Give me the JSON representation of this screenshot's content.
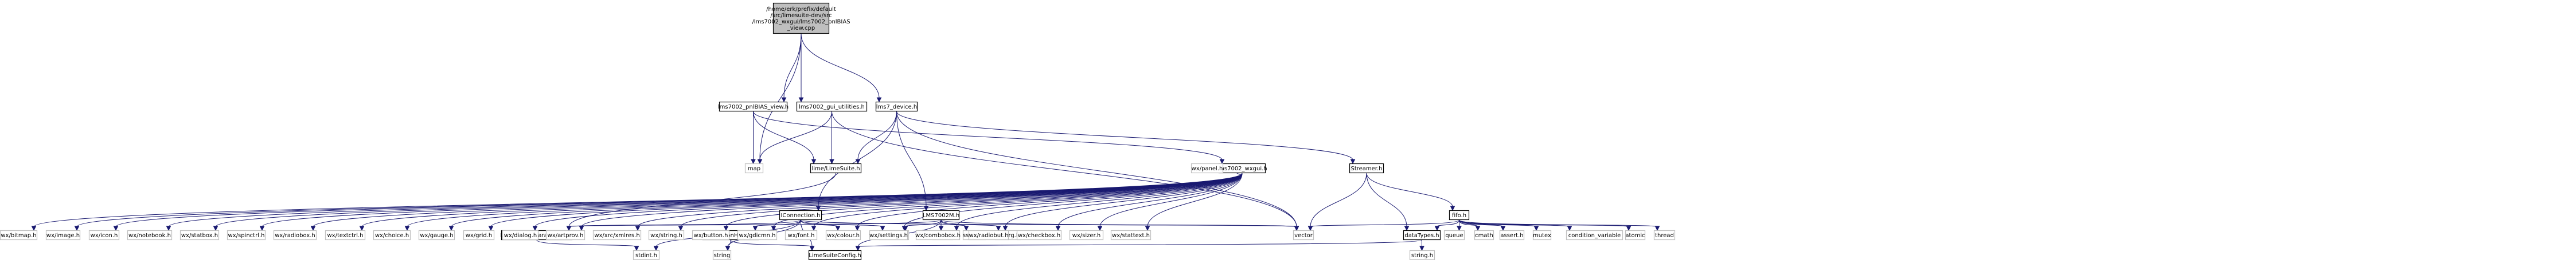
{
  "title": "",
  "nodes": [
    {
      "id": "root",
      "kind": "root",
      "lines": [
        "/home/erk/prefix/default",
        "/src/limesuite-dev/src",
        "/lms7002_wxgui/lms7002_pnlBIAS",
        "_view.cpp"
      ]
    },
    {
      "id": "pnlBIAS_view_h",
      "kind": "linked",
      "lines": [
        "lms7002_pnlBIAS_view.h"
      ]
    },
    {
      "id": "gui_utilities_h",
      "kind": "linked",
      "lines": [
        "lms7002_gui_utilities.h"
      ]
    },
    {
      "id": "lms7_device_h",
      "kind": "linked",
      "lines": [
        "lms7_device.h"
      ]
    },
    {
      "id": "map",
      "kind": "plain",
      "lines": [
        "map"
      ]
    },
    {
      "id": "lms7002_wxgui_h",
      "kind": "linked",
      "lines": [
        "lms7002_wxgui.h"
      ]
    },
    {
      "id": "lime_LimeSuite_h",
      "kind": "linked",
      "lines": [
        "lime/LimeSuite.h"
      ]
    },
    {
      "id": "Streamer_h",
      "kind": "linked",
      "lines": [
        "Streamer.h"
      ]
    },
    {
      "id": "fifo_h",
      "kind": "linked",
      "lines": [
        "fifo.h"
      ]
    },
    {
      "id": "IConnection_h",
      "kind": "linked",
      "lines": [
        "IConnection.h"
      ]
    },
    {
      "id": "LMS7002M_h",
      "kind": "linked",
      "lines": [
        "LMS7002M.h"
      ]
    },
    {
      "id": "LMS7002M_parameters_h",
      "kind": "linked",
      "lines": [
        "LMS7002M_parameters.h"
      ]
    },
    {
      "id": "ConnectionHandle_h",
      "kind": "linked",
      "lines": [
        "ConnectionHandle.h"
      ]
    },
    {
      "id": "LimeSuiteConfig_h",
      "kind": "linked",
      "lines": [
        "LimeSuiteConfig.h"
      ]
    },
    {
      "id": "dataTypes_h",
      "kind": "linked",
      "lines": [
        "dataTypes.h"
      ]
    },
    {
      "id": "vector",
      "kind": "plain",
      "lines": [
        "vector"
      ]
    },
    {
      "id": "stdint_h",
      "kind": "plain",
      "lines": [
        "stdint.h"
      ]
    },
    {
      "id": "string",
      "kind": "plain",
      "lines": [
        "string"
      ]
    },
    {
      "id": "cstring",
      "kind": "plain",
      "lines": [
        "cstring"
      ]
    },
    {
      "id": "functional",
      "kind": "plain",
      "lines": [
        "functional"
      ]
    },
    {
      "id": "cstdint",
      "kind": "plain",
      "lines": [
        "cstdint"
      ]
    },
    {
      "id": "sstream",
      "kind": "plain",
      "lines": [
        "sstream"
      ]
    },
    {
      "id": "stdarg_h",
      "kind": "plain",
      "lines": [
        "stdarg.h"
      ]
    },
    {
      "id": "queue",
      "kind": "plain",
      "lines": [
        "queue"
      ]
    },
    {
      "id": "cmath",
      "kind": "plain",
      "lines": [
        "cmath"
      ]
    },
    {
      "id": "assert_h",
      "kind": "plain",
      "lines": [
        "assert.h"
      ]
    },
    {
      "id": "mutex",
      "kind": "plain",
      "lines": [
        "mutex"
      ]
    },
    {
      "id": "condition_variable",
      "kind": "plain",
      "lines": [
        "condition_variable"
      ]
    },
    {
      "id": "atomic",
      "kind": "plain",
      "lines": [
        "atomic"
      ]
    },
    {
      "id": "thread",
      "kind": "plain",
      "lines": [
        "thread"
      ]
    },
    {
      "id": "string_h",
      "kind": "plain",
      "lines": [
        "string.h"
      ]
    },
    {
      "id": "wx_bitmap_h",
      "kind": "plain",
      "lines": [
        "wx/bitmap.h"
      ]
    },
    {
      "id": "wx_image_h",
      "kind": "plain",
      "lines": [
        "wx/image.h"
      ]
    },
    {
      "id": "wx_icon_h",
      "kind": "plain",
      "lines": [
        "wx/icon.h"
      ]
    },
    {
      "id": "wx_notebook_h",
      "kind": "plain",
      "lines": [
        "wx/notebook.h"
      ]
    },
    {
      "id": "wx_statbox_h",
      "kind": "plain",
      "lines": [
        "wx/statbox.h"
      ]
    },
    {
      "id": "wx_spinctrl_h",
      "kind": "plain",
      "lines": [
        "wx/spinctrl.h"
      ]
    },
    {
      "id": "wx_radiobox_h",
      "kind": "plain",
      "lines": [
        "wx/radiobox.h"
      ]
    },
    {
      "id": "wx_textctrl_h",
      "kind": "plain",
      "lines": [
        "wx/textctrl.h"
      ]
    },
    {
      "id": "wx_choice_h",
      "kind": "plain",
      "lines": [
        "wx/choice.h"
      ]
    },
    {
      "id": "wx_gauge_h",
      "kind": "plain",
      "lines": [
        "wx/gauge.h"
      ]
    },
    {
      "id": "wx_grid_h",
      "kind": "plain",
      "lines": [
        "wx/grid.h"
      ]
    },
    {
      "id": "wx_dialog_h",
      "kind": "plain",
      "lines": [
        "wx/dialog.h"
      ]
    },
    {
      "id": "wx_artprov_h",
      "kind": "plain",
      "lines": [
        "wx/artprov.h"
      ]
    },
    {
      "id": "wx_xrc_xmlres_h",
      "kind": "plain",
      "lines": [
        "wx/xrc/xmlres.h"
      ]
    },
    {
      "id": "wx_string_h",
      "kind": "plain",
      "lines": [
        "wx/string.h"
      ]
    },
    {
      "id": "wx_button_h",
      "kind": "plain",
      "lines": [
        "wx/button.h"
      ]
    },
    {
      "id": "wx_gdicmn_h",
      "kind": "plain",
      "lines": [
        "wx/gdicmn.h"
      ]
    },
    {
      "id": "wx_font_h",
      "kind": "plain",
      "lines": [
        "wx/font.h"
      ]
    },
    {
      "id": "wx_colour_h",
      "kind": "plain",
      "lines": [
        "wx/colour.h"
      ]
    },
    {
      "id": "wx_settings_h",
      "kind": "plain",
      "lines": [
        "wx/settings.h"
      ]
    },
    {
      "id": "wx_combobox_h",
      "kind": "plain",
      "lines": [
        "wx/combobox.h"
      ]
    },
    {
      "id": "wx_radiobut_h",
      "kind": "plain",
      "lines": [
        "wx/radiobut.h"
      ]
    },
    {
      "id": "wx_checkbox_h",
      "kind": "plain",
      "lines": [
        "wx/checkbox.h"
      ]
    },
    {
      "id": "wx_sizer_h",
      "kind": "plain",
      "lines": [
        "wx/sizer.h"
      ]
    },
    {
      "id": "wx_stattext_h",
      "kind": "plain",
      "lines": [
        "wx/stattext.h"
      ]
    },
    {
      "id": "wx_panel_h",
      "kind": "plain",
      "lines": [
        "wx/panel.h"
      ]
    }
  ],
  "edges": [
    [
      "root",
      "pnlBIAS_view_h"
    ],
    [
      "root",
      "gui_utilities_h"
    ],
    [
      "root",
      "lms7_device_h"
    ],
    [
      "root",
      "map"
    ],
    [
      "pnlBIAS_view_h",
      "lms7002_wxgui_h"
    ],
    [
      "pnlBIAS_view_h",
      "map"
    ],
    [
      "pnlBIAS_view_h",
      "lime_LimeSuite_h"
    ],
    [
      "gui_utilities_h",
      "map"
    ],
    [
      "gui_utilities_h",
      "lime_LimeSuite_h"
    ],
    [
      "gui_utilities_h",
      "vector"
    ],
    [
      "lms7_device_h",
      "lime_LimeSuite_h"
    ],
    [
      "lms7_device_h",
      "IConnection_h"
    ],
    [
      "lms7_device_h",
      "LMS7002M_h"
    ],
    [
      "lms7_device_h",
      "Streamer_h"
    ],
    [
      "lms7_device_h",
      "vector"
    ],
    [
      "Streamer_h",
      "fifo_h"
    ],
    [
      "Streamer_h",
      "dataTypes_h"
    ],
    [
      "Streamer_h",
      "vector"
    ],
    [
      "fifo_h",
      "dataTypes_h"
    ],
    [
      "fifo_h",
      "vector"
    ],
    [
      "fifo_h",
      "queue"
    ],
    [
      "fifo_h",
      "cmath"
    ],
    [
      "fifo_h",
      "assert_h"
    ],
    [
      "fifo_h",
      "mutex"
    ],
    [
      "fifo_h",
      "condition_variable"
    ],
    [
      "fifo_h",
      "atomic"
    ],
    [
      "fifo_h",
      "thread"
    ],
    [
      "dataTypes_h",
      "LimeSuiteConfig_h"
    ],
    [
      "dataTypes_h",
      "string_h"
    ],
    [
      "lime_LimeSuite_h",
      "LMS7002M_parameters_h"
    ],
    [
      "IConnection_h",
      "LMS7002M_parameters_h"
    ],
    [
      "IConnection_h",
      "ConnectionHandle_h"
    ],
    [
      "IConnection_h",
      "LimeSuiteConfig_h"
    ],
    [
      "IConnection_h",
      "stdint_h"
    ],
    [
      "IConnection_h",
      "string"
    ],
    [
      "IConnection_h",
      "cstring"
    ],
    [
      "IConnection_h",
      "functional"
    ],
    [
      "IConnection_h",
      "vector"
    ],
    [
      "LMS7002M_h",
      "LMS7002M_parameters_h"
    ],
    [
      "LMS7002M_h",
      "LimeSuiteConfig_h"
    ],
    [
      "LMS7002M_h",
      "cstdint"
    ],
    [
      "LMS7002M_h",
      "sstream"
    ],
    [
      "LMS7002M_h",
      "stdarg_h"
    ],
    [
      "LMS7002M_h",
      "functional"
    ],
    [
      "LMS7002M_h",
      "vector"
    ],
    [
      "LMS7002M_parameters_h",
      "stdint_h"
    ],
    [
      "ConnectionHandle_h",
      "LimeSuiteConfig_h"
    ],
    [
      "ConnectionHandle_h",
      "string"
    ],
    [
      "lms7002_wxgui_h",
      "wx_bitmap_h"
    ],
    [
      "lms7002_wxgui_h",
      "wx_image_h"
    ],
    [
      "lms7002_wxgui_h",
      "wx_icon_h"
    ],
    [
      "lms7002_wxgui_h",
      "wx_notebook_h"
    ],
    [
      "lms7002_wxgui_h",
      "wx_statbox_h"
    ],
    [
      "lms7002_wxgui_h",
      "wx_spinctrl_h"
    ],
    [
      "lms7002_wxgui_h",
      "wx_radiobox_h"
    ],
    [
      "lms7002_wxgui_h",
      "wx_textctrl_h"
    ],
    [
      "lms7002_wxgui_h",
      "wx_choice_h"
    ],
    [
      "lms7002_wxgui_h",
      "wx_gauge_h"
    ],
    [
      "lms7002_wxgui_h",
      "wx_grid_h"
    ],
    [
      "lms7002_wxgui_h",
      "wx_dialog_h"
    ],
    [
      "lms7002_wxgui_h",
      "wx_artprov_h"
    ],
    [
      "lms7002_wxgui_h",
      "wx_xrc_xmlres_h"
    ],
    [
      "lms7002_wxgui_h",
      "wx_string_h"
    ],
    [
      "lms7002_wxgui_h",
      "wx_button_h"
    ],
    [
      "lms7002_wxgui_h",
      "wx_gdicmn_h"
    ],
    [
      "lms7002_wxgui_h",
      "wx_font_h"
    ],
    [
      "lms7002_wxgui_h",
      "wx_colour_h"
    ],
    [
      "lms7002_wxgui_h",
      "wx_settings_h"
    ],
    [
      "lms7002_wxgui_h",
      "wx_combobox_h"
    ],
    [
      "lms7002_wxgui_h",
      "wx_radiobut_h"
    ],
    [
      "lms7002_wxgui_h",
      "wx_checkbox_h"
    ],
    [
      "lms7002_wxgui_h",
      "wx_sizer_h"
    ],
    [
      "lms7002_wxgui_h",
      "wx_stattext_h"
    ],
    [
      "lms7002_wxgui_h",
      "wx_panel_h"
    ]
  ],
  "colors": {
    "edge": "#191970",
    "root_fill": "#bfbfbf",
    "linked_border": "#000000",
    "plain_border": "#bfbfbf"
  }
}
